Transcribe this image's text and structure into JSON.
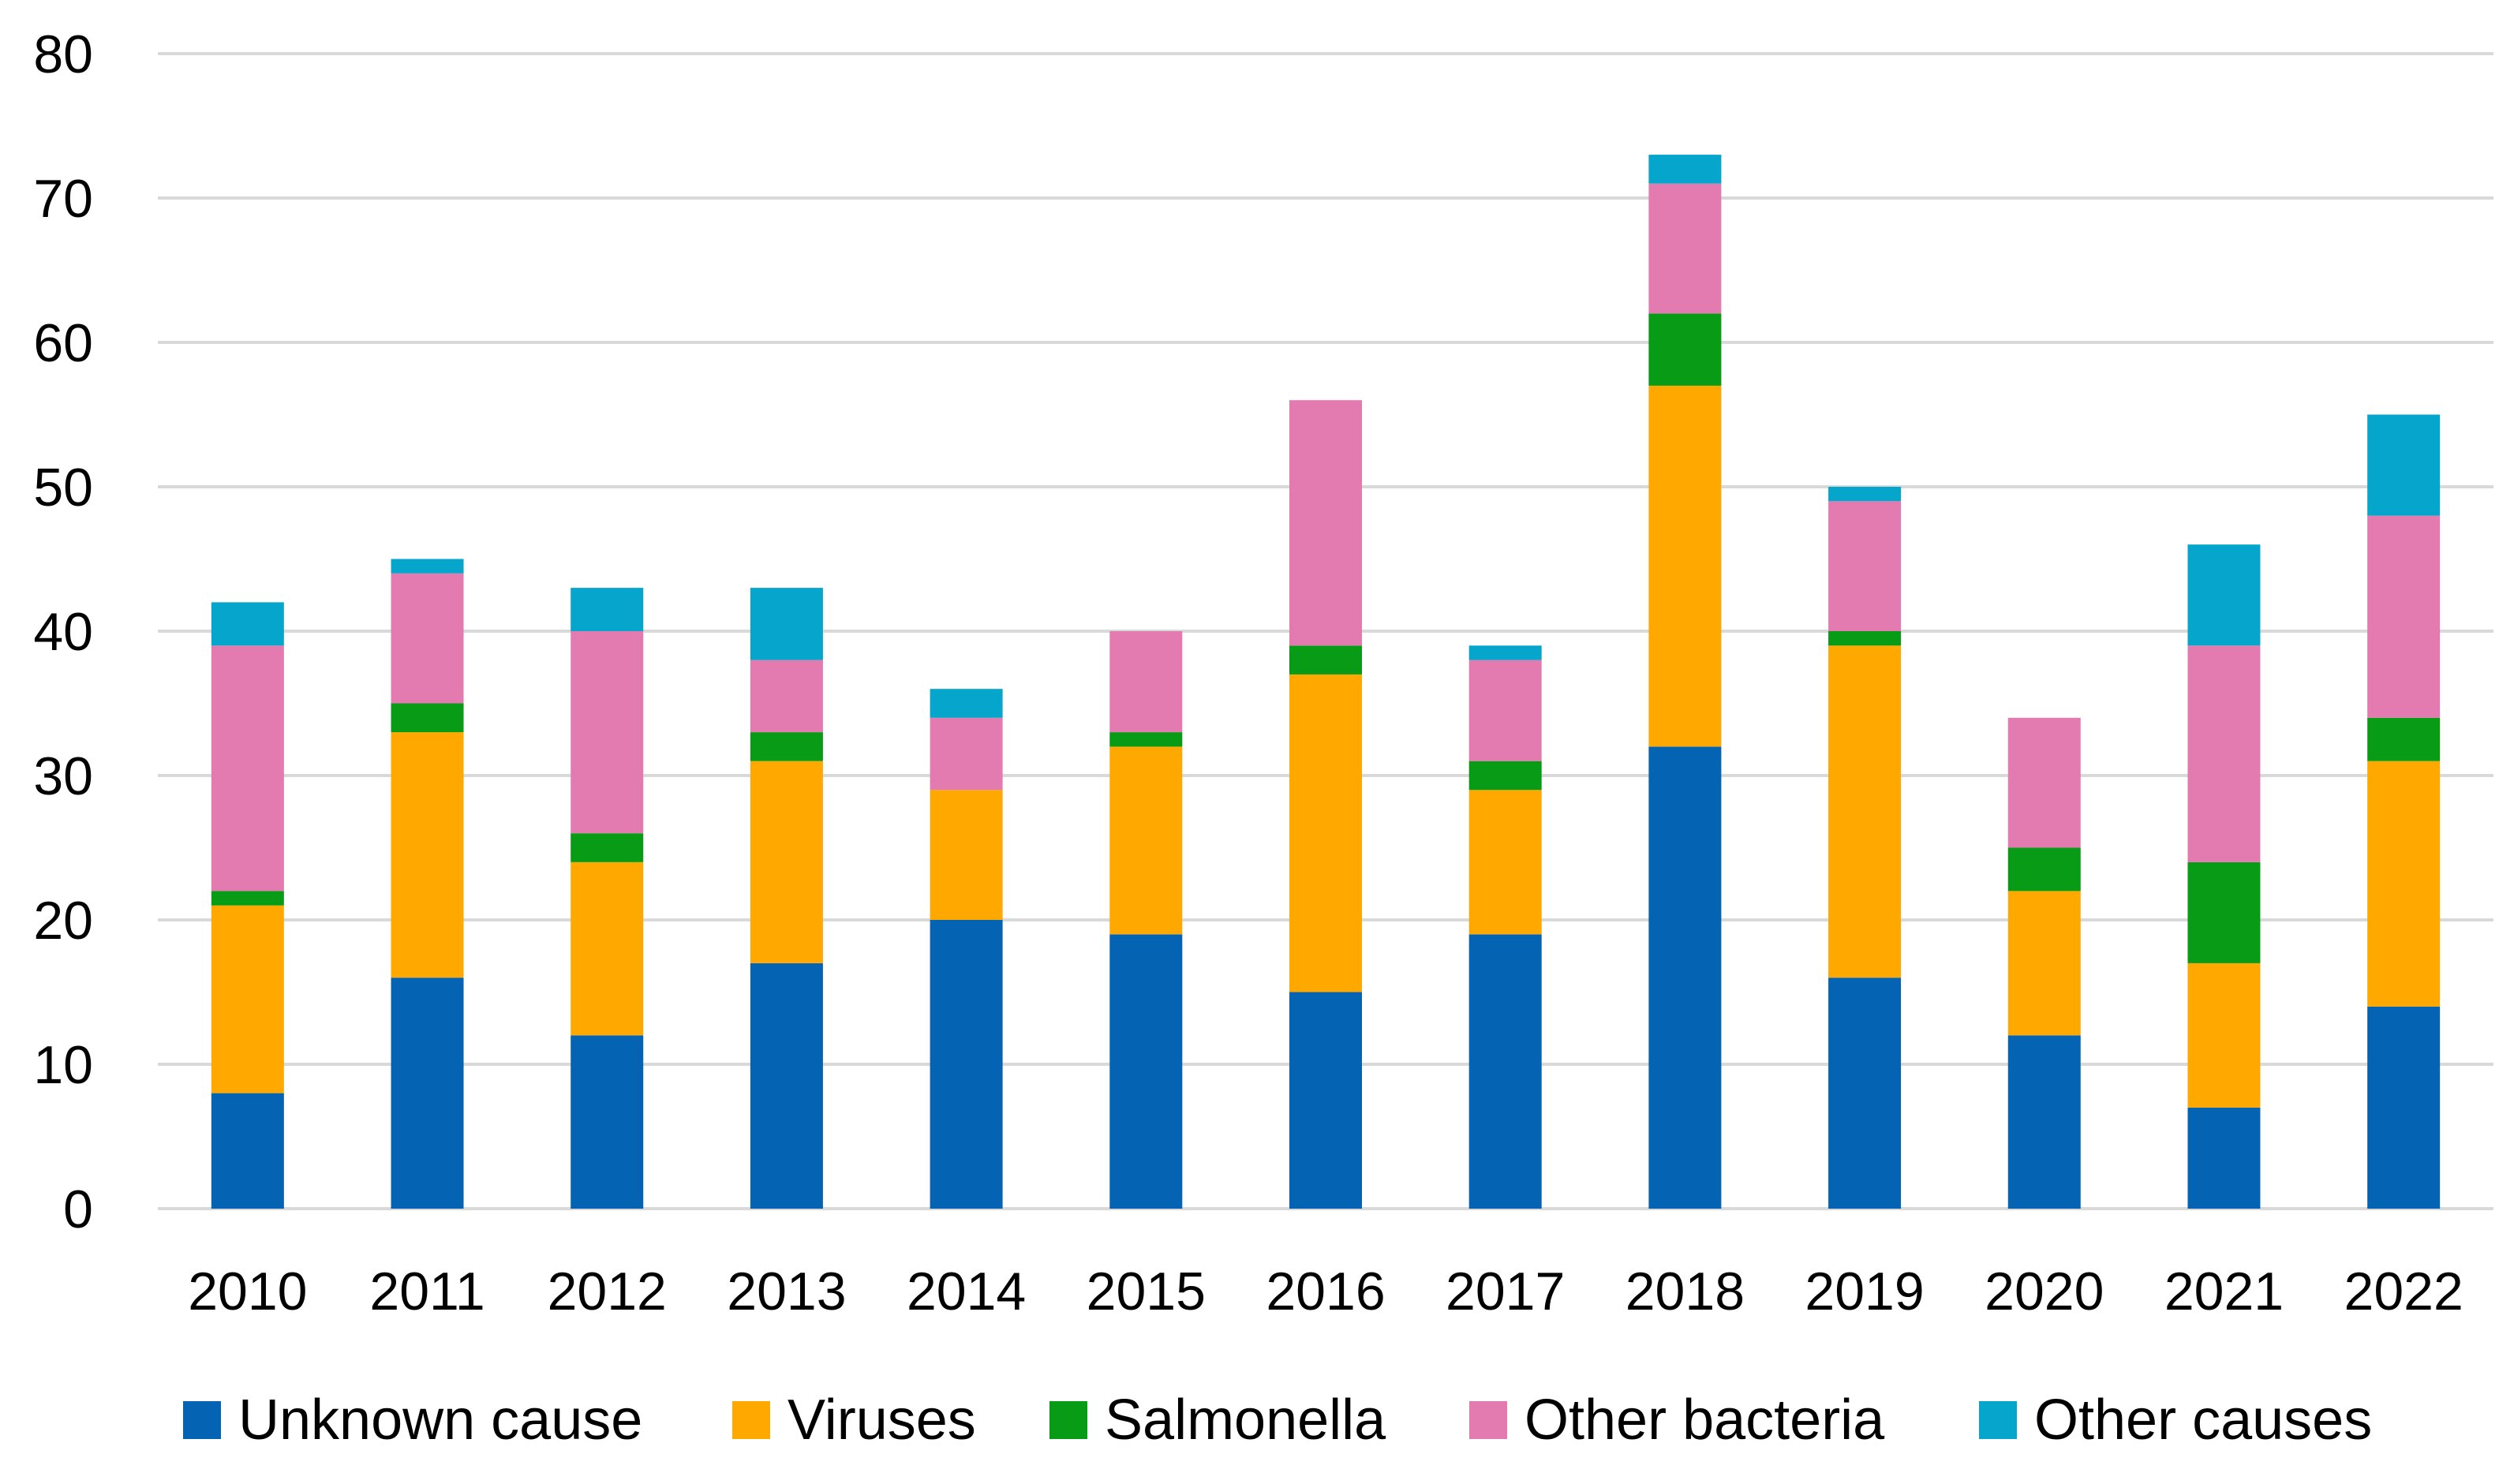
{
  "chart_data": {
    "type": "bar",
    "stacked": true,
    "title": "",
    "xlabel": "",
    "ylabel": "",
    "ylim": [
      0,
      80
    ],
    "yticks": [
      0,
      10,
      20,
      30,
      40,
      50,
      60,
      70,
      80
    ],
    "grid": true,
    "legend_position": "bottom",
    "categories": [
      "2010",
      "2011",
      "2012",
      "2013",
      "2014",
      "2015",
      "2016",
      "2017",
      "2018",
      "2019",
      "2020",
      "2021",
      "2022"
    ],
    "series": [
      {
        "name": "Unknown cause",
        "color": "#0563b3",
        "values": [
          8,
          16,
          12,
          17,
          20,
          19,
          15,
          19,
          32,
          16,
          12,
          7,
          14
        ]
      },
      {
        "name": "Viruses",
        "color": "#ffa800",
        "values": [
          13,
          17,
          12,
          14,
          9,
          13,
          22,
          10,
          25,
          23,
          10,
          10,
          17
        ]
      },
      {
        "name": "Salmonella",
        "color": "#089b16",
        "values": [
          1,
          2,
          2,
          2,
          0,
          1,
          2,
          2,
          5,
          1,
          3,
          7,
          3
        ]
      },
      {
        "name": "Other bacteria",
        "color": "#e37bb0",
        "values": [
          17,
          9,
          14,
          5,
          5,
          7,
          17,
          7,
          9,
          9,
          9,
          15,
          14
        ]
      },
      {
        "name": "Other causes",
        "color": "#06a6cc",
        "values": [
          3,
          1,
          3,
          5,
          2,
          0,
          0,
          1,
          2,
          1,
          0,
          7,
          7
        ]
      }
    ]
  }
}
